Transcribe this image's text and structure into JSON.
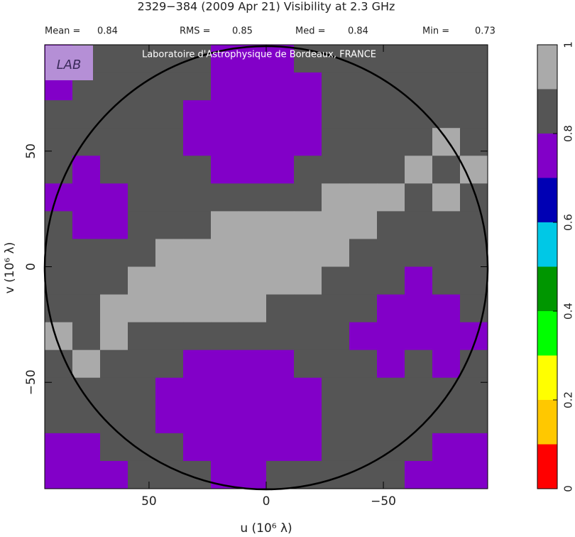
{
  "chart_data": {
    "type": "heatmap",
    "title": "2329−384  (2009 Apr 21)   Visibility at  2.3 GHz",
    "stats": [
      {
        "label": "Mean =",
        "value": 0.84
      },
      {
        "label": "RMS =",
        "value": 0.85
      },
      {
        "label": "Med =",
        "value": 0.84
      },
      {
        "label": "Min =",
        "value": 0.73
      }
    ],
    "logo": "LAB",
    "banner": "Laboratoire d'Astrophysique de Bordeaux, FRANCE",
    "xlabel": "u  (10⁶ λ)",
    "ylabel": "v  (10⁶ λ)",
    "xlim": [
      94.5,
      -94.5
    ],
    "ylim": [
      -96,
      96
    ],
    "xticks": [
      50,
      0,
      {
        "value": -50,
        "label": "−50"
      }
    ],
    "yticks": [
      50,
      0,
      {
        "value": -50,
        "label": "−50"
      }
    ],
    "z": [
      [
        0.75,
        0.85,
        0.85,
        0.85,
        0.85,
        0.85,
        0.75,
        0.75,
        0.75,
        0.85,
        0.85,
        0.85,
        0.85,
        0.85,
        0.85,
        0.85
      ],
      [
        0.75,
        0.85,
        0.85,
        0.85,
        0.85,
        0.85,
        0.75,
        0.75,
        0.75,
        0.75,
        0.85,
        0.85,
        0.85,
        0.85,
        0.85,
        0.85
      ],
      [
        0.85,
        0.85,
        0.85,
        0.85,
        0.85,
        0.75,
        0.75,
        0.75,
        0.75,
        0.75,
        0.85,
        0.85,
        0.85,
        0.85,
        0.85,
        0.85
      ],
      [
        0.85,
        0.85,
        0.85,
        0.85,
        0.85,
        0.75,
        0.75,
        0.75,
        0.75,
        0.75,
        0.85,
        0.85,
        0.85,
        0.85,
        0.95,
        0.85
      ],
      [
        0.85,
        0.75,
        0.85,
        0.85,
        0.85,
        0.85,
        0.75,
        0.75,
        0.75,
        0.85,
        0.85,
        0.85,
        0.85,
        0.95,
        0.85,
        0.95
      ],
      [
        0.75,
        0.75,
        0.75,
        0.85,
        0.85,
        0.85,
        0.85,
        0.85,
        0.85,
        0.85,
        0.95,
        0.95,
        0.95,
        0.85,
        0.95,
        0.85
      ],
      [
        0.85,
        0.75,
        0.75,
        0.85,
        0.85,
        0.85,
        0.95,
        0.95,
        0.95,
        0.95,
        0.95,
        0.95,
        0.85,
        0.85,
        0.85,
        0.85
      ],
      [
        0.85,
        0.85,
        0.85,
        0.85,
        0.95,
        0.95,
        0.95,
        0.95,
        0.95,
        0.95,
        0.95,
        0.85,
        0.85,
        0.85,
        0.85,
        0.85
      ],
      [
        0.85,
        0.85,
        0.85,
        0.95,
        0.95,
        0.95,
        0.95,
        0.95,
        0.95,
        0.95,
        0.85,
        0.85,
        0.85,
        0.75,
        0.85,
        0.85
      ],
      [
        0.85,
        0.85,
        0.95,
        0.95,
        0.95,
        0.95,
        0.95,
        0.95,
        0.85,
        0.85,
        0.85,
        0.85,
        0.75,
        0.75,
        0.75,
        0.85
      ],
      [
        0.95,
        0.85,
        0.95,
        0.85,
        0.85,
        0.85,
        0.85,
        0.85,
        0.85,
        0.85,
        0.85,
        0.75,
        0.75,
        0.75,
        0.75,
        0.75
      ],
      [
        0.85,
        0.95,
        0.85,
        0.85,
        0.85,
        0.75,
        0.75,
        0.75,
        0.75,
        0.85,
        0.85,
        0.85,
        0.75,
        0.85,
        0.75,
        0.85
      ],
      [
        0.85,
        0.85,
        0.85,
        0.85,
        0.75,
        0.75,
        0.75,
        0.75,
        0.75,
        0.75,
        0.85,
        0.85,
        0.85,
        0.85,
        0.85,
        0.85
      ],
      [
        0.85,
        0.85,
        0.85,
        0.85,
        0.75,
        0.75,
        0.75,
        0.75,
        0.75,
        0.75,
        0.85,
        0.85,
        0.85,
        0.85,
        0.85,
        0.85
      ],
      [
        0.75,
        0.75,
        0.85,
        0.85,
        0.85,
        0.75,
        0.75,
        0.75,
        0.75,
        0.75,
        0.85,
        0.85,
        0.85,
        0.85,
        0.75,
        0.75
      ],
      [
        0.75,
        0.75,
        0.75,
        0.85,
        0.85,
        0.85,
        0.75,
        0.75,
        0.85,
        0.85,
        0.85,
        0.85,
        0.85,
        0.75,
        0.75,
        0.75
      ]
    ],
    "colorbar": {
      "bounds": [
        0,
        0.1,
        0.2,
        0.3,
        0.4,
        0.5,
        0.6,
        0.7,
        0.8,
        0.9,
        1
      ],
      "colors": [
        "#ff0000",
        "#ffc800",
        "#ffff00",
        "#00ff00",
        "#009600",
        "#00c8e6",
        "#0000b4",
        "#8200c8",
        "#555555",
        "#aaaaaa"
      ],
      "ticks": [
        0,
        0.2,
        0.4,
        0.6,
        0.8,
        1
      ]
    }
  }
}
